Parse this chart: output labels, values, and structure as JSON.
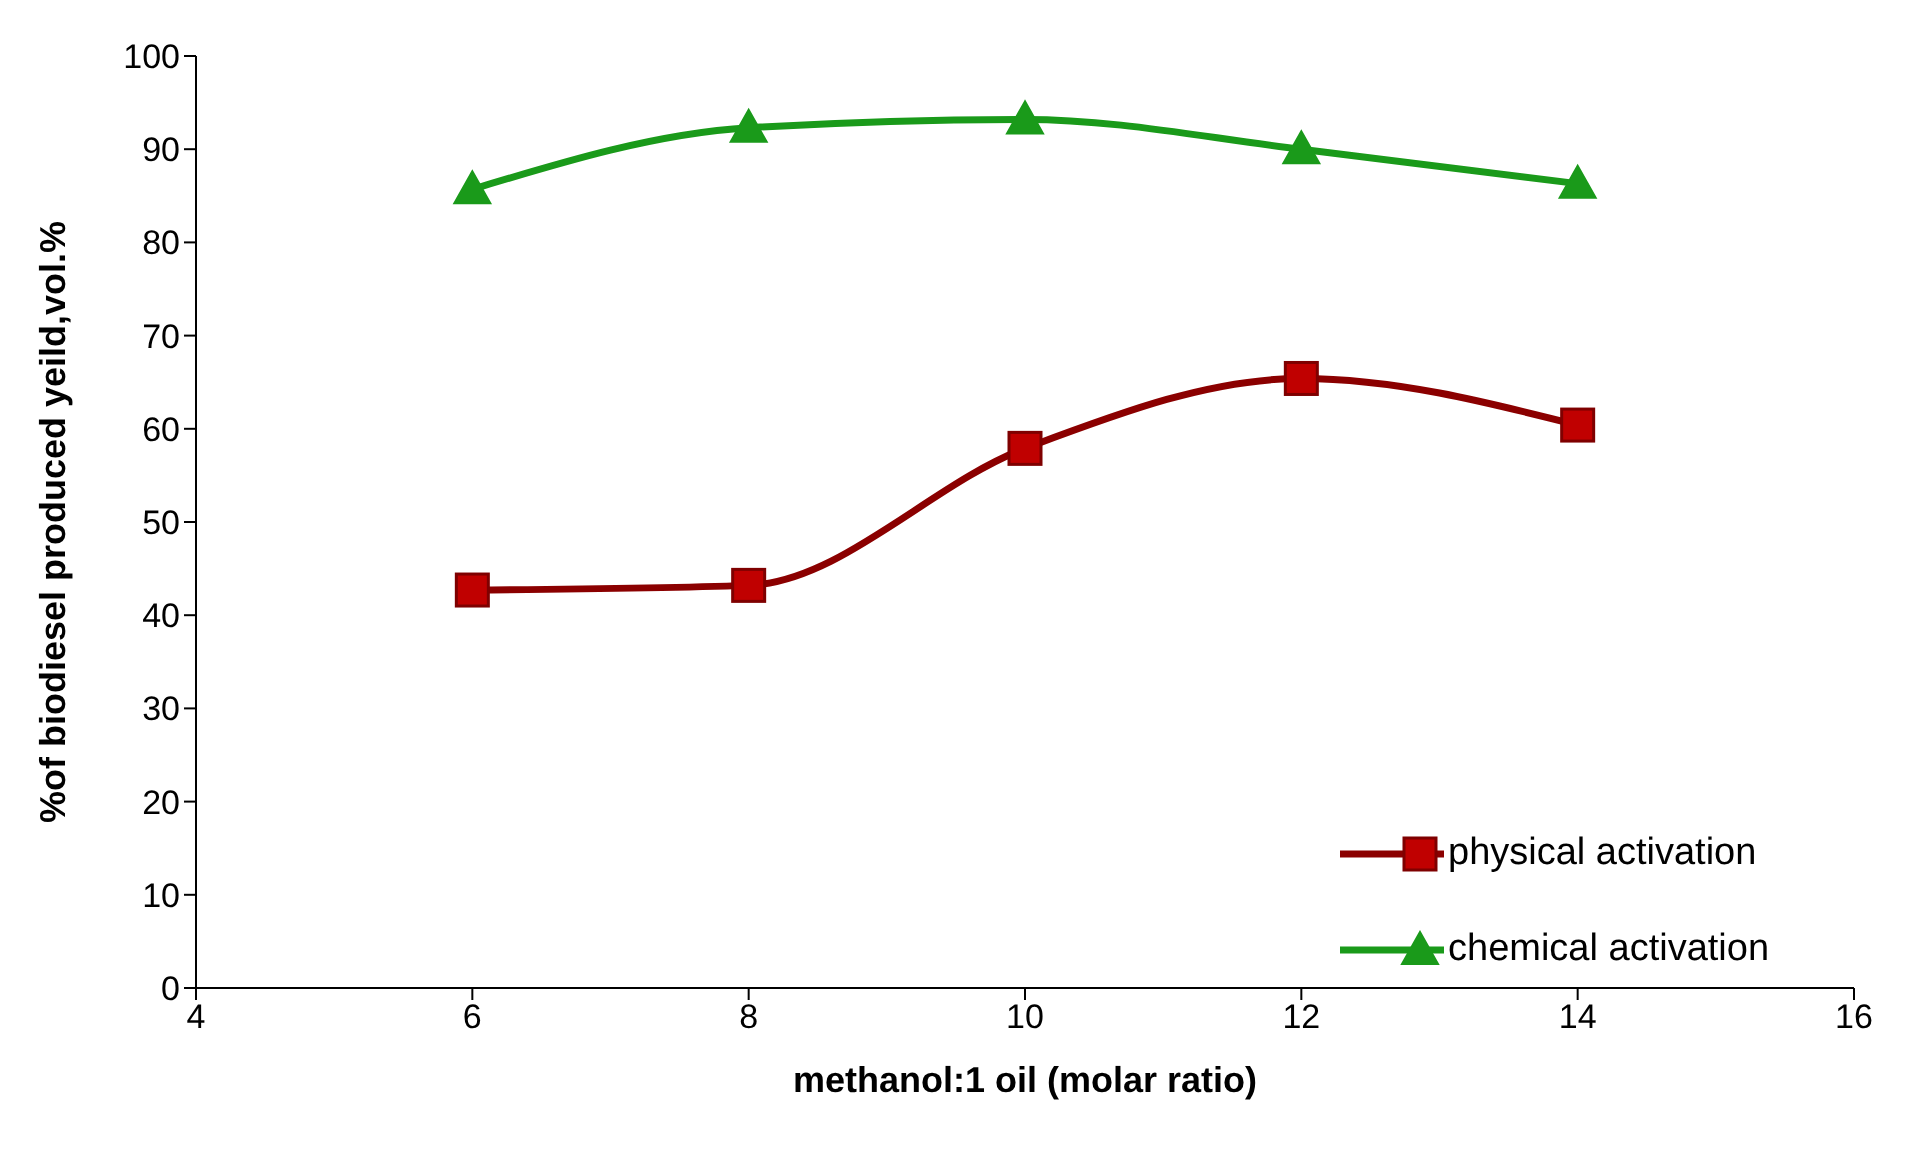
{
  "chart_data": {
    "type": "line",
    "xlabel": "methanol:1 oil (molar ratio)",
    "ylabel": "%of biodiesel produced yeild,vol.%",
    "x": [
      6,
      8,
      10,
      12,
      14
    ],
    "series": [
      {
        "name": "physical activation",
        "color": "#c00000",
        "marker": "square",
        "values": [
          42.7,
          43.2,
          57.9,
          65.4,
          60.4
        ]
      },
      {
        "name": "chemical activation",
        "color": "#1a9a1a",
        "marker": "triangle",
        "values": [
          85.7,
          92.3,
          93.2,
          90.0,
          86.3
        ]
      }
    ],
    "xlim": [
      4,
      16
    ],
    "xticks": [
      4,
      6,
      8,
      10,
      12,
      14,
      16
    ],
    "ylim": [
      0,
      100
    ],
    "yticks": [
      0,
      10,
      20,
      30,
      40,
      50,
      60,
      70,
      80,
      90,
      100
    ],
    "grid": false,
    "legend": "bottom right",
    "line_style": "solid"
  }
}
